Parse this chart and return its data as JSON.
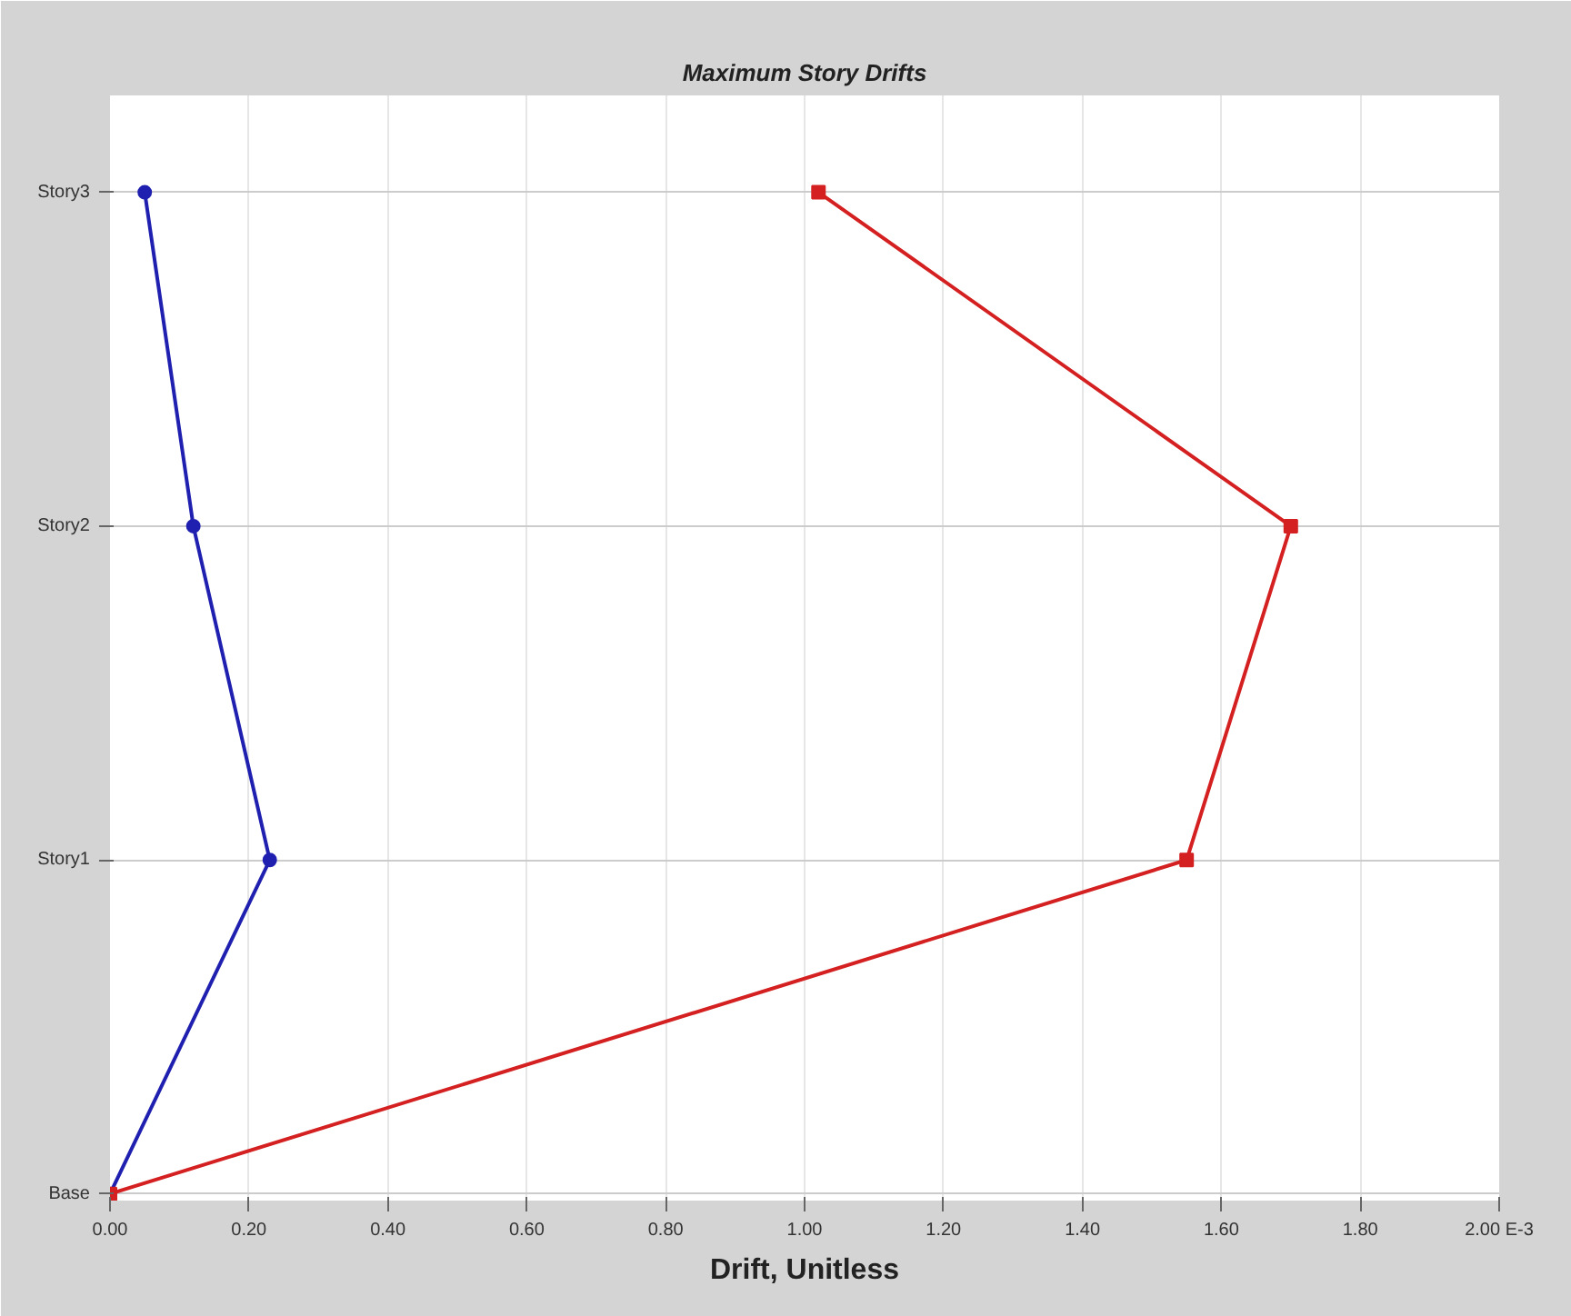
{
  "chart_data": {
    "type": "line",
    "orientation": "horizontal",
    "title": "Maximum Story Drifts",
    "xlabel": "Drift, Unitless",
    "categories": [
      "Story3",
      "Story2",
      "Story1",
      "Base"
    ],
    "series": [
      {
        "color": "#2020b0",
        "values": [
          0.05,
          0.12,
          0.23,
          0.0
        ],
        "marker": "circle"
      },
      {
        "color": "#d42020",
        "values": [
          1.02,
          1.7,
          1.55,
          0.0
        ],
        "marker": "square"
      }
    ],
    "xlim": [
      0,
      2
    ],
    "xticks": [
      {
        "value": 0,
        "label": "0.00"
      },
      {
        "value": 0.2,
        "label": "0.20"
      },
      {
        "value": 0.4,
        "label": "0.40"
      },
      {
        "value": 0.6,
        "label": "0.60"
      },
      {
        "value": 0.8,
        "label": "0.80"
      },
      {
        "value": 1.0,
        "label": "1.00"
      },
      {
        "value": 1.2,
        "label": "1.20"
      },
      {
        "value": 1.4,
        "label": "1.40"
      },
      {
        "value": 1.6,
        "label": "1.60"
      },
      {
        "value": 1.8,
        "label": "1.80"
      },
      {
        "value": 2.0,
        "label": "2.00 E-3"
      }
    ],
    "grid": true,
    "line_style": "solid"
  }
}
